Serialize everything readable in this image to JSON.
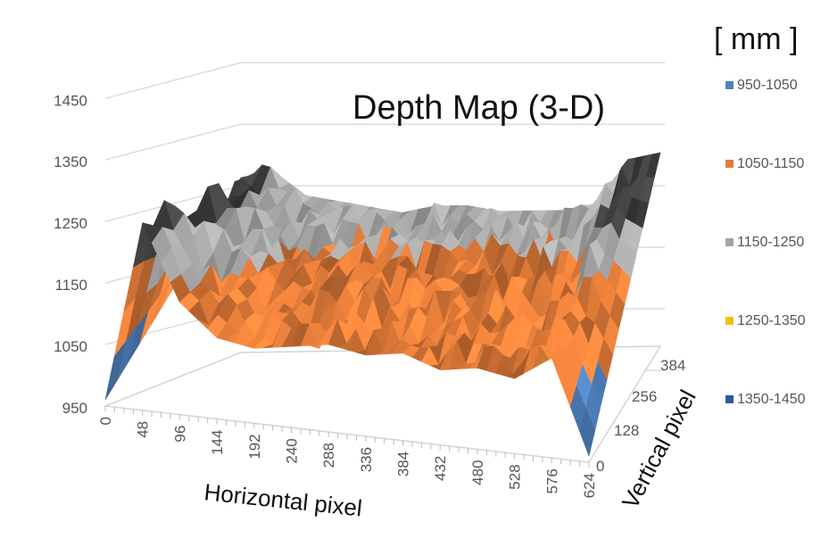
{
  "chart_data": {
    "type": "surface",
    "title": "Depth Map (3-D)",
    "unit_label": "[ mm ]",
    "xlabel": "Horizontal pixel",
    "ylabel": "Vertical pixel",
    "zlim": [
      950,
      1450
    ],
    "z_ticks": [
      "1450",
      "1350",
      "1250",
      "1150",
      "1050",
      "950"
    ],
    "x_ticks": [
      "0",
      "48",
      "96",
      "144",
      "192",
      "240",
      "288",
      "336",
      "384",
      "432",
      "480",
      "528",
      "576",
      "624"
    ],
    "y_ticks": [
      "0",
      "128",
      "256",
      "384"
    ],
    "legend_position": "right",
    "legend": [
      {
        "label": "950-1050",
        "color": "#4f81bd"
      },
      {
        "label": "1050-1150",
        "color": "#e07b39"
      },
      {
        "label": "1150-1250",
        "color": "#a5a5a5"
      },
      {
        "label": "1250-1350",
        "color": "#f5c000"
      },
      {
        "label": "1350-1450",
        "color": "#2e58a6"
      }
    ],
    "surface_profile": {
      "x": [
        0,
        48,
        96,
        144,
        192,
        240,
        288,
        336,
        384,
        432,
        480,
        528,
        576,
        624
      ],
      "front_edge_depth": [
        960,
        1250,
        1130,
        1080,
        1070,
        1080,
        1090,
        1080,
        1090,
        1070,
        1080,
        1070,
        1110,
        960
      ],
      "back_edge_depth": [
        1230,
        1240,
        1200,
        1190,
        1180,
        1170,
        1180,
        1180,
        1170,
        1170,
        1170,
        1180,
        1250,
        1260
      ]
    }
  }
}
